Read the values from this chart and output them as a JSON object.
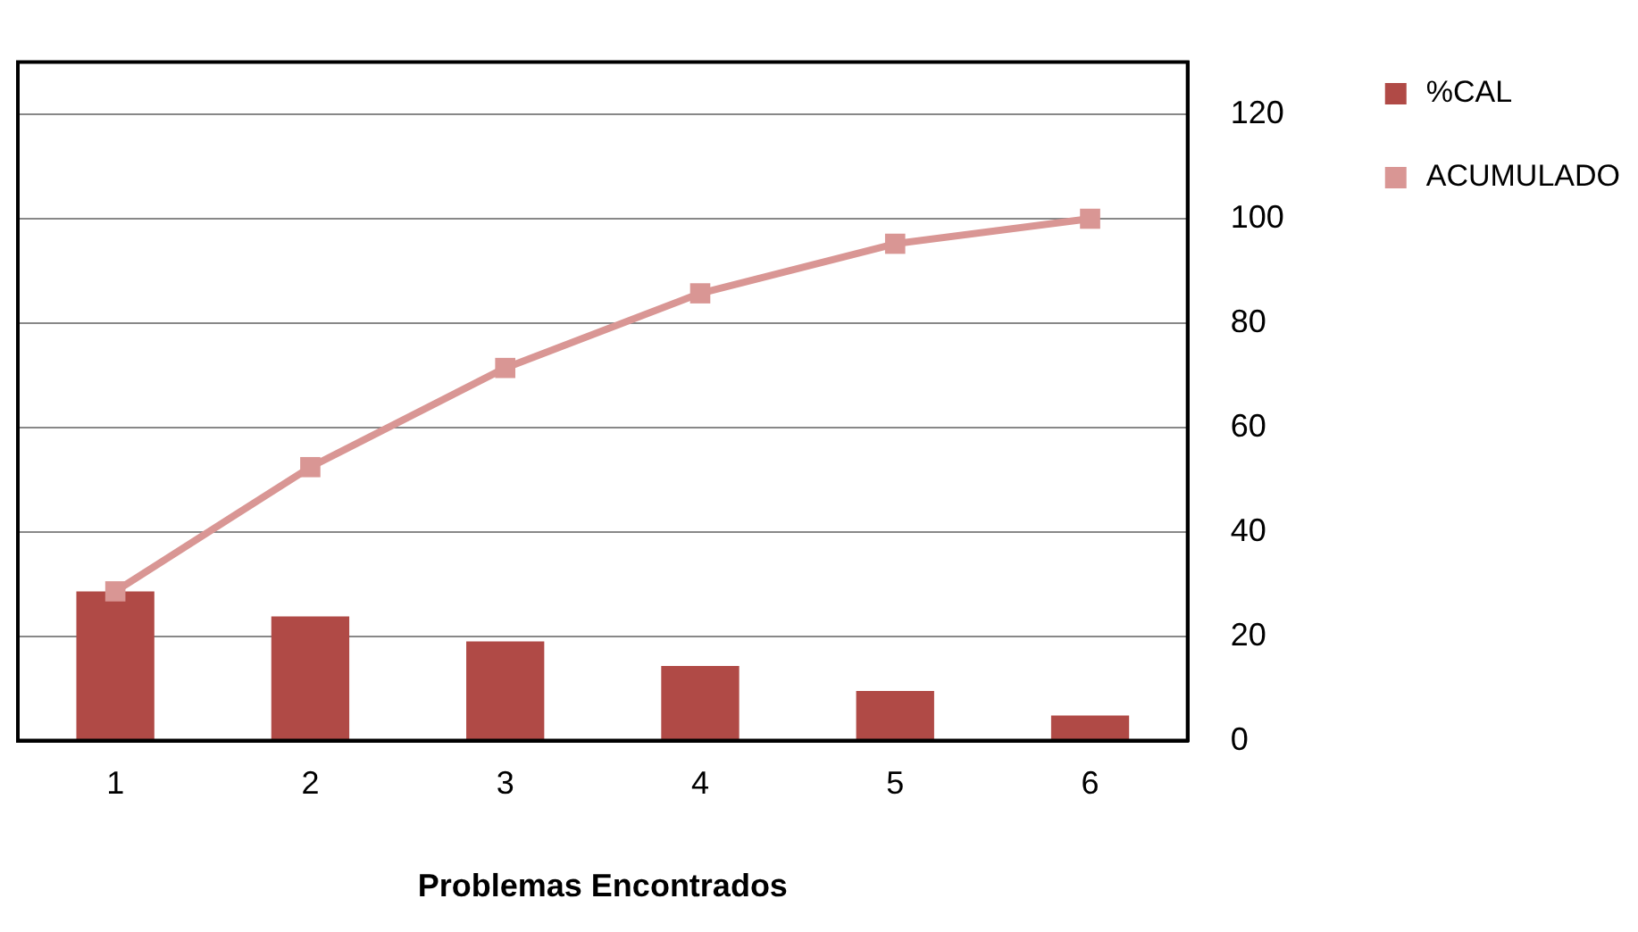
{
  "chart_data": {
    "type": "bar",
    "xlabel": "Problemas Encontrados",
    "categories": [
      "1",
      "2",
      "3",
      "4",
      "5",
      "6"
    ],
    "series": [
      {
        "name": "%CAL",
        "color": "#b04a46",
        "values": [
          28.6,
          23.8,
          19.0,
          14.3,
          9.5,
          4.8
        ]
      },
      {
        "name": "ACUMULADO",
        "type": "line",
        "color": "#d99694",
        "marker": "square",
        "values": [
          28.6,
          52.4,
          71.4,
          85.7,
          95.2,
          100
        ]
      }
    ],
    "ylim": [
      0,
      130
    ],
    "yticks": [
      0,
      20,
      40,
      60,
      80,
      100,
      120
    ],
    "grid": "y",
    "legend": "right"
  }
}
